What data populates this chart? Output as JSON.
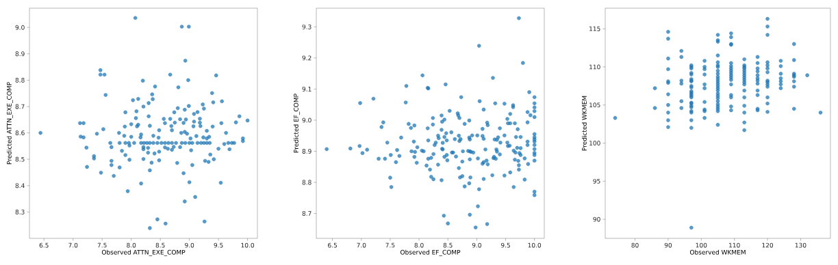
{
  "chart_data": [
    {
      "type": "scatter",
      "xlabel": "Observed ATTN_EXE_COMP",
      "ylabel": "Predicted ATTN_EXE_COMP",
      "color": "#1f77b4",
      "marker": "circle",
      "xlim": [
        6.25,
        10.17
      ],
      "ylim": [
        8.2,
        9.073
      ],
      "xticks": [
        {
          "value": 6.5,
          "label": "6.5"
        },
        {
          "value": 7,
          "label": "7.0"
        },
        {
          "value": 7.5,
          "label": "7.5"
        },
        {
          "value": 8,
          "label": "8.0"
        },
        {
          "value": 8.5,
          "label": "8.5"
        },
        {
          "value": 9,
          "label": "9.0"
        },
        {
          "value": 9.5,
          "label": "9.5"
        },
        {
          "value": 10,
          "label": "10.0"
        }
      ],
      "yticks": [
        {
          "value": 8.3,
          "label": "8.3"
        },
        {
          "value": 8.4,
          "label": "8.4"
        },
        {
          "value": 8.5,
          "label": "8.5"
        },
        {
          "value": 8.6,
          "label": "8.6"
        },
        {
          "value": 8.7,
          "label": "8.7"
        },
        {
          "value": 8.8,
          "label": "8.8"
        },
        {
          "value": 8.9,
          "label": "8.9"
        },
        {
          "value": 9,
          "label": "9.0"
        }
      ],
      "x": [
        6.44,
        8.07,
        8.87,
        8.99,
        8.93,
        7.47,
        7.47,
        7.54,
        8.67,
        9.46,
        8.2,
        8.98,
        8.41,
        8.81,
        7.56,
        8.36,
        8.37,
        9.39,
        8.03,
        8.12,
        8.3,
        9.41,
        9.56,
        8.21,
        9.23,
        9.25,
        8.8,
        8.92,
        8.99,
        7.9,
        8.09,
        8.74,
        9.14,
        9.08,
        8.08,
        8.3,
        8.56,
        8.67,
        8.84,
        8.94,
        9.18,
        9.86,
        10.0,
        7.12,
        7.18,
        8.0,
        8.12,
        8.1,
        8.32,
        8.58,
        8.69,
        8.75,
        8.9,
        9.08,
        9.18,
        9.07,
        9.19,
        9.55,
        9.8,
        7.89,
        9.4,
        7.52,
        8.48,
        8.7,
        9.3,
        7.41,
        7.79,
        8.86,
        8.92,
        8.96,
        9.63,
        7.13,
        7.18,
        7.88,
        8.0,
        8.17,
        8.38,
        8.47,
        8.16,
        9.02,
        9.12,
        9.24,
        9.34,
        9.3,
        9.92,
        9.92,
        7.64,
        7.8,
        7.9,
        7.96,
        8.05,
        8.17,
        8.22,
        8.27,
        8.32,
        8.38,
        8.45,
        8.52,
        8.58,
        8.64,
        8.7,
        8.77,
        8.87,
        8.93,
        9.0,
        9.05,
        9.14,
        9.2,
        9.25,
        9.3,
        9.35,
        9.67,
        9.73,
        9.77,
        7.66,
        7.97,
        8.21,
        8.29,
        8.58,
        8.63,
        8.73,
        8.84,
        7.23,
        9.5,
        9.6,
        9.69,
        7.84,
        8.21,
        8.48,
        8.7,
        9.03,
        8.4,
        8.29,
        9.36,
        7.36,
        7.36,
        7.9,
        7.66,
        7.66,
        7.97,
        8.21,
        8.48,
        9.27,
        9.33,
        9.42,
        7.24,
        7.8,
        8.35,
        8.79,
        9.05,
        7.48,
        7.7,
        8.32,
        8.9,
        8.17,
        9.0,
        9.54,
        7.94,
        9.1,
        8.92,
        8.45,
        8.59,
        8.32,
        9.26
      ],
      "values": [
        8.6,
        9.036,
        9.003,
        9.003,
        8.874,
        8.838,
        8.821,
        8.821,
        8.821,
        8.818,
        8.798,
        8.8,
        8.776,
        8.773,
        8.744,
        8.746,
        8.728,
        8.751,
        8.724,
        8.729,
        8.713,
        8.716,
        8.72,
        8.7,
        8.708,
        8.692,
        8.694,
        8.688,
        8.702,
        8.678,
        8.682,
        8.678,
        8.679,
        8.672,
        8.656,
        8.663,
        8.653,
        8.653,
        8.652,
        8.651,
        8.654,
        8.663,
        8.647,
        8.637,
        8.637,
        8.633,
        8.631,
        8.625,
        8.627,
        8.637,
        8.626,
        8.639,
        8.638,
        8.643,
        8.639,
        8.625,
        8.626,
        8.637,
        8.64,
        8.624,
        8.624,
        8.614,
        8.61,
        8.61,
        8.608,
        8.597,
        8.6,
        8.6,
        8.604,
        8.597,
        8.6,
        8.586,
        8.583,
        8.589,
        8.585,
        8.594,
        8.589,
        8.582,
        8.583,
        8.579,
        8.588,
        8.583,
        8.585,
        8.579,
        8.579,
        8.569,
        8.562,
        8.562,
        8.562,
        8.562,
        8.562,
        8.562,
        8.562,
        8.562,
        8.562,
        8.562,
        8.562,
        8.562,
        8.562,
        8.562,
        8.562,
        8.562,
        8.562,
        8.562,
        8.562,
        8.562,
        8.562,
        8.562,
        8.562,
        8.562,
        8.562,
        8.562,
        8.562,
        8.562,
        8.546,
        8.552,
        8.546,
        8.543,
        8.545,
        8.54,
        8.547,
        8.546,
        8.544,
        8.54,
        8.558,
        8.538,
        8.532,
        8.538,
        8.529,
        8.536,
        8.534,
        8.522,
        8.525,
        8.518,
        8.512,
        8.503,
        8.516,
        8.494,
        8.478,
        8.498,
        8.501,
        8.496,
        8.494,
        8.49,
        8.5,
        8.471,
        8.469,
        8.487,
        8.486,
        8.478,
        8.449,
        8.437,
        8.458,
        8.447,
        8.408,
        8.413,
        8.411,
        8.379,
        8.357,
        8.34,
        8.272,
        8.256,
        8.239,
        8.264
      ]
    },
    {
      "type": "scatter",
      "xlabel": "Observed EF_COMP",
      "ylabel": "Predicted EF_COMP",
      "color": "#1f77b4",
      "marker": "circle",
      "xlim": [
        6.22,
        10.17
      ],
      "ylim": [
        8.62,
        9.36
      ],
      "xticks": [
        {
          "value": 6.5,
          "label": "6.5"
        },
        {
          "value": 7,
          "label": "7.0"
        },
        {
          "value": 7.5,
          "label": "7.5"
        },
        {
          "value": 8,
          "label": "8.0"
        },
        {
          "value": 8.5,
          "label": "8.5"
        },
        {
          "value": 9,
          "label": "9.0"
        },
        {
          "value": 9.5,
          "label": "9.5"
        },
        {
          "value": 10,
          "label": "10.0"
        }
      ],
      "yticks": [
        {
          "value": 8.7,
          "label": "8.7"
        },
        {
          "value": 8.8,
          "label": "8.8"
        },
        {
          "value": 8.9,
          "label": "8.9"
        },
        {
          "value": 9,
          "label": "9.0"
        },
        {
          "value": 9.1,
          "label": "9.1"
        },
        {
          "value": 9.2,
          "label": "9.2"
        },
        {
          "value": 9.3,
          "label": "9.3"
        }
      ],
      "x": [
        6.4,
        6.81,
        6.97,
        7.02,
        7.1,
        6.98,
        7.21,
        7.3,
        7.41,
        7.35,
        7.38,
        7.45,
        7.51,
        7.5,
        7.52,
        7.6,
        7.62,
        7.66,
        7.69,
        7.77,
        7.78,
        7.82,
        7.86,
        7.92,
        7.87,
        7.91,
        7.93,
        7.92,
        7.97,
        7.96,
        8.06,
        8.05,
        8.08,
        8.15,
        8.16,
        8.15,
        8.16,
        8.13,
        8.19,
        8.21,
        8.25,
        8.16,
        8.21,
        8.24,
        8.24,
        8.25,
        8.27,
        8.29,
        8.33,
        8.33,
        8.34,
        8.39,
        8.39,
        8.4,
        8.44,
        8.39,
        8.41,
        8.44,
        8.47,
        8.48,
        8.4,
        8.41,
        8.44,
        8.48,
        8.49,
        8.46,
        8.53,
        8.56,
        8.57,
        8.59,
        8.62,
        8.64,
        8.67,
        8.68,
        8.7,
        8.69,
        8.69,
        8.71,
        8.7,
        8.72,
        8.75,
        8.76,
        8.75,
        8.73,
        8.79,
        8.79,
        8.85,
        8.87,
        8.88,
        8.87,
        8.88,
        8.87,
        8.88,
        8.9,
        8.92,
        8.89,
        8.94,
        8.88,
        8.5,
        8.43,
        8.98,
        9.02,
        9.04,
        9.05,
        9.04,
        9.02,
        9.01,
        9.1,
        9.1,
        9.1,
        9.12,
        9.12,
        9.12,
        9.12,
        9.15,
        9.18,
        9.19,
        9.17,
        9.19,
        9.18,
        9.27,
        9.28,
        9.29,
        9.3,
        9.33,
        9.31,
        9.34,
        9.35,
        9.35,
        9.37,
        9.32,
        9.4,
        9.41,
        9.4,
        9.48,
        9.48,
        9.48,
        9.53,
        9.54,
        9.53,
        9.54,
        9.57,
        9.58,
        9.58,
        9.58,
        9.63,
        9.63,
        9.64,
        9.64,
        9.66,
        9.67,
        9.68,
        9.66,
        9.71,
        9.7,
        9.72,
        9.73,
        9.73,
        9.74,
        9.73,
        9.8,
        9.76,
        9.76,
        9.76,
        9.83,
        9.83,
        9.91,
        9.93,
        9.88,
        9.88,
        9.88,
        9.88,
        9.89,
        10,
        10,
        10,
        10,
        10,
        10,
        10,
        10,
        10,
        10,
        10,
        10,
        10,
        10,
        10,
        10
      ],
      "values": [
        8.907,
        8.909,
        8.917,
        8.894,
        8.905,
        9.055,
        9.069,
        8.876,
        8.876,
        8.978,
        8.993,
        8.928,
        8.888,
        8.815,
        8.785,
        8.865,
        8.904,
        8.885,
        8.944,
        9.057,
        9.11,
        8.988,
        8.975,
        8.983,
        8.9,
        8.931,
        8.898,
        8.882,
        8.913,
        8.863,
        9.144,
        8.902,
        8.9,
        9.104,
        9.102,
        8.974,
        8.935,
        8.854,
        8.841,
        8.818,
        8.81,
        8.876,
        8.879,
        9.007,
        8.986,
        8.891,
        8.92,
        8.928,
        8.857,
        8.95,
        8.942,
        8.807,
        9.015,
        8.995,
        9.002,
        8.969,
        8.927,
        8.946,
        8.958,
        8.935,
        8.908,
        8.906,
        8.882,
        8.888,
        8.871,
        9.115,
        9.03,
        8.961,
        8.896,
        8.896,
        8.939,
        8.883,
        9.022,
        9.015,
        9.007,
        8.95,
        8.846,
        8.816,
        8.933,
        8.939,
        8.867,
        8.9,
        8.82,
        9.074,
        8.787,
        8.988,
        8.901,
        8.944,
        8.938,
        8.999,
        8.874,
        8.797,
        8.9,
        8.898,
        8.951,
        8.816,
        8.896,
        8.696,
        8.668,
        8.693,
        8.655,
        8.723,
        9.239,
        9.061,
        8.778,
        8.877,
        8.951,
        8.972,
        8.949,
        8.86,
        8.865,
        8.94,
        9.034,
        8.811,
        8.906,
        8.992,
        8.984,
        8.87,
        8.858,
        8.666,
        8.823,
        9.136,
        8.878,
        8.882,
        8.876,
        8.938,
        8.906,
        8.937,
        8.899,
        8.945,
        9.054,
        8.974,
        8.928,
        8.89,
        9.053,
        8.951,
        8.822,
        9.004,
        8.99,
        8.928,
        8.917,
        8.918,
        8.832,
        9.02,
        8.99,
        9.048,
        9.042,
        8.902,
        8.785,
        8.99,
        8.896,
        8.946,
        8.873,
        8.971,
        8.911,
        8.869,
        8.855,
        8.841,
        8.894,
        9.328,
        9.184,
        8.946,
        8.91,
        8.888,
        8.877,
        8.809,
        9.09,
        9.016,
        9.026,
        8.993,
        8.931,
        8.92,
        8.859,
        9.074,
        9.054,
        9.041,
        9.029,
        9.01,
        8.955,
        8.945,
        8.938,
        8.931,
        8.92,
        8.907,
        8.895,
        8.888,
        8.87,
        8.77,
        8.759
      ]
    },
    {
      "type": "scatter",
      "xlabel": "Observed WKMEM",
      "ylabel": "Predicted WKMEM",
      "color": "#1f77b4",
      "marker": "circle",
      "xlim": [
        71,
        139
      ],
      "ylim": [
        87.5,
        117.7
      ],
      "xticks": [
        80,
        90,
        100,
        110,
        120,
        130
      ],
      "yticks": [
        90,
        95,
        100,
        105,
        110,
        115
      ],
      "x": [
        74,
        86,
        86,
        90,
        90,
        90,
        90,
        90,
        90,
        90,
        90,
        90,
        90,
        90,
        94,
        94,
        94,
        94,
        94,
        94,
        97,
        97,
        97,
        97,
        97,
        97,
        97,
        97,
        97,
        97,
        97,
        97,
        97,
        97,
        97,
        97,
        97,
        97,
        97,
        97,
        97,
        97,
        97,
        97,
        101,
        101,
        101,
        101,
        101,
        101,
        101,
        101,
        101,
        101,
        105,
        105,
        105,
        105,
        105,
        105,
        105,
        105,
        105,
        105,
        105,
        105,
        105,
        105,
        105,
        105,
        105,
        105,
        105,
        105,
        105,
        105,
        105,
        105,
        105,
        109,
        109,
        109,
        109,
        109,
        109,
        109,
        109,
        109,
        109,
        109,
        109,
        109,
        109,
        109,
        109,
        109,
        113,
        113,
        113,
        113,
        113,
        113,
        113,
        113,
        113,
        113,
        113,
        113,
        113,
        113,
        113,
        113,
        113,
        117,
        117,
        117,
        117,
        117,
        117,
        117,
        117,
        117,
        117,
        117,
        117,
        120,
        120,
        120,
        120,
        120,
        120,
        120,
        120,
        120,
        120,
        120,
        120,
        120,
        120,
        124,
        124,
        124,
        124,
        124,
        124,
        124,
        128,
        128,
        128,
        128,
        128,
        128,
        128,
        128,
        132,
        136
      ],
      "values": [
        103.3,
        107.2,
        104.6,
        114.6,
        113.7,
        111.1,
        109.7,
        108.1,
        107.9,
        106.4,
        105.0,
        104.0,
        103.0,
        102.1,
        112.1,
        111.3,
        108.2,
        107.8,
        105.5,
        104.6,
        110.2,
        110.0,
        109.8,
        109.2,
        109.0,
        108.4,
        108.2,
        108.1,
        107.5,
        107.3,
        106.8,
        106.6,
        106.4,
        106.2,
        106.0,
        105.3,
        105.2,
        104.9,
        104.7,
        104.2,
        104.0,
        103.0,
        102.0,
        88.9,
        110.8,
        110.0,
        109.7,
        109.0,
        107.7,
        107.2,
        105.4,
        104.4,
        104.2,
        103.3,
        114.2,
        113.5,
        113.3,
        111.5,
        110.6,
        110.2,
        110.0,
        109.5,
        109.1,
        108.7,
        108.4,
        108.1,
        107.8,
        107.5,
        107.2,
        106.9,
        106.5,
        106.2,
        105.9,
        105.5,
        105.1,
        104.8,
        104.5,
        104.2,
        102.4,
        114.4,
        113.9,
        113.0,
        112.9,
        110.5,
        110.1,
        109.8,
        109.5,
        109.2,
        108.9,
        108.6,
        108.3,
        107.7,
        106.3,
        106.0,
        104.8,
        104.3,
        111.0,
        110.2,
        110.0,
        109.8,
        109.5,
        109.2,
        108.9,
        108.6,
        108.3,
        108.0,
        107.7,
        106.9,
        106.0,
        104.9,
        104.0,
        102.7,
        101.7,
        111.3,
        110.5,
        109.8,
        109.4,
        108.9,
        108.5,
        108.2,
        107.8,
        106.9,
        106.3,
        104.5,
        104.3,
        116.3,
        115.3,
        114.2,
        110.6,
        110.2,
        109.8,
        109.3,
        108.2,
        108.0,
        107.7,
        107.4,
        106.0,
        105.2,
        104.1,
        110.8,
        110.1,
        109.1,
        108.5,
        108.1,
        107.7,
        107.2,
        113.0,
        110.9,
        109.1,
        108.9,
        108.7,
        108.1,
        107.4,
        104.5,
        108.9,
        104.0
      ]
    }
  ]
}
